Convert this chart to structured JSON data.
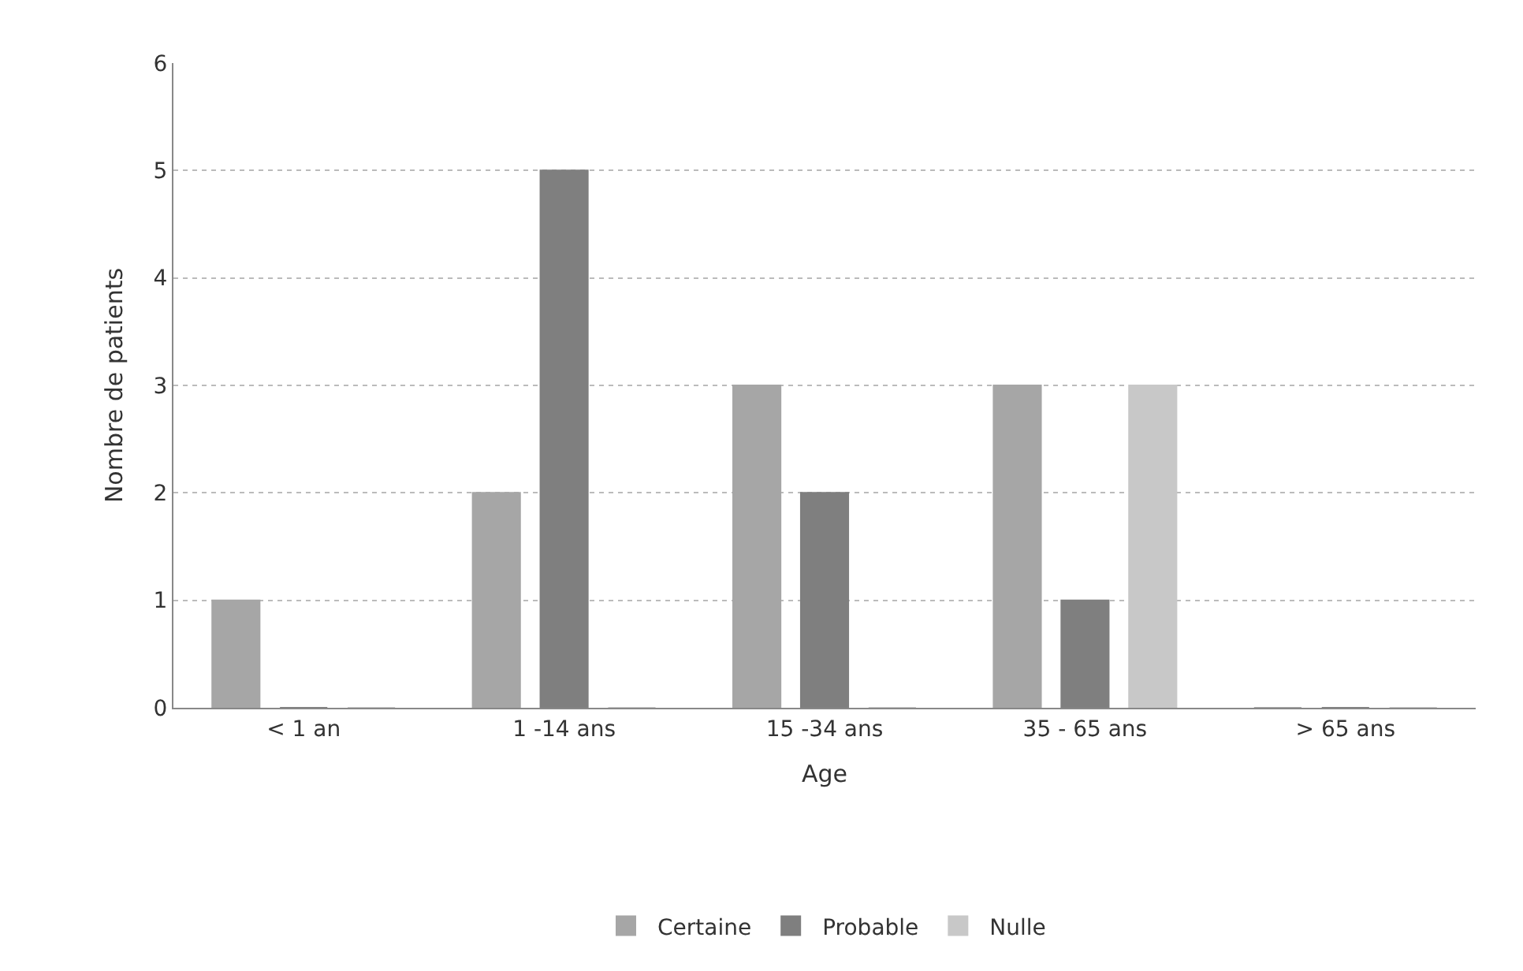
{
  "chart_data": {
    "type": "bar",
    "xlabel": "Age",
    "ylabel": "Nombre de patients",
    "categories": [
      "< 1 an",
      "1 -14 ans",
      "15 -34 ans",
      "35 - 65 ans",
      "> 65 ans"
    ],
    "series": [
      {
        "name": "Certaine",
        "color": "#a6a6a6",
        "values": [
          1,
          2,
          3,
          3,
          0
        ]
      },
      {
        "name": "Probable",
        "color": "#7f7f7f",
        "values": [
          0,
          5,
          2,
          1,
          0
        ]
      },
      {
        "name": "Nulle",
        "color": "#c8c8c8",
        "values": [
          0,
          0,
          0,
          3,
          0
        ]
      }
    ],
    "ylim": [
      0,
      6
    ],
    "yticks": [
      0,
      1,
      2,
      3,
      4,
      5,
      6
    ],
    "grid": "y",
    "legend": "bottom"
  }
}
